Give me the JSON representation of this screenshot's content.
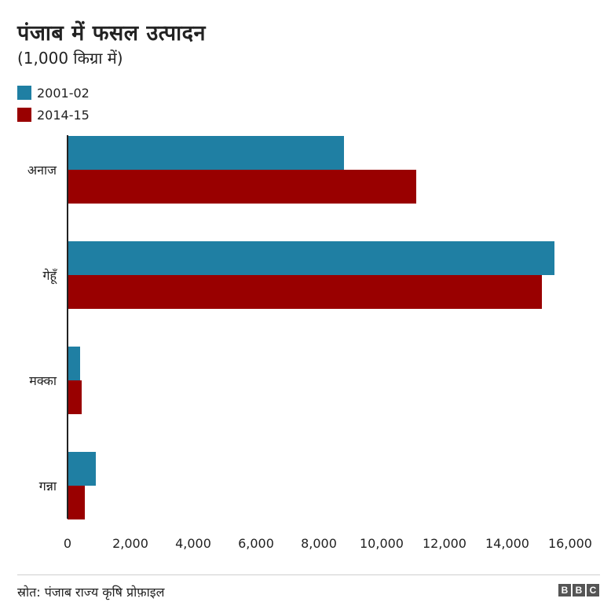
{
  "logo": {
    "letters": [
      "B",
      "B",
      "C"
    ]
  },
  "colors": {
    "series_2001": "#1f7fa3",
    "series_2014": "#990000",
    "axis": "#222222",
    "text": "#222222"
  },
  "source": "स्रोत: पंजाब राज्य कृषि प्रोफ़ाइल",
  "chart_data": {
    "type": "bar",
    "orientation": "horizontal",
    "title": "पंजाब में फसल उत्पादन",
    "subtitle": "(1,000 किग्रा में)",
    "categories": [
      "अनाज",
      "गेहूँ",
      "मक्का",
      "गन्ना"
    ],
    "series": [
      {
        "name": "2001-02",
        "color": "#1f7fa3",
        "values": [
          8800,
          15500,
          400,
          900
        ]
      },
      {
        "name": "2014-15",
        "color": "#990000",
        "values": [
          11100,
          15100,
          450,
          550
        ]
      }
    ],
    "xlim": [
      0,
      16000
    ],
    "xticks": [
      0,
      2000,
      4000,
      6000,
      8000,
      10000,
      12000,
      14000,
      16000
    ],
    "xtick_labels": [
      "0",
      "2,000",
      "4,000",
      "6,000",
      "8,000",
      "10,000",
      "12,000",
      "14,000",
      "16,000"
    ],
    "xlabel": "",
    "ylabel": "",
    "grid": false,
    "legend_position": "top-left"
  }
}
